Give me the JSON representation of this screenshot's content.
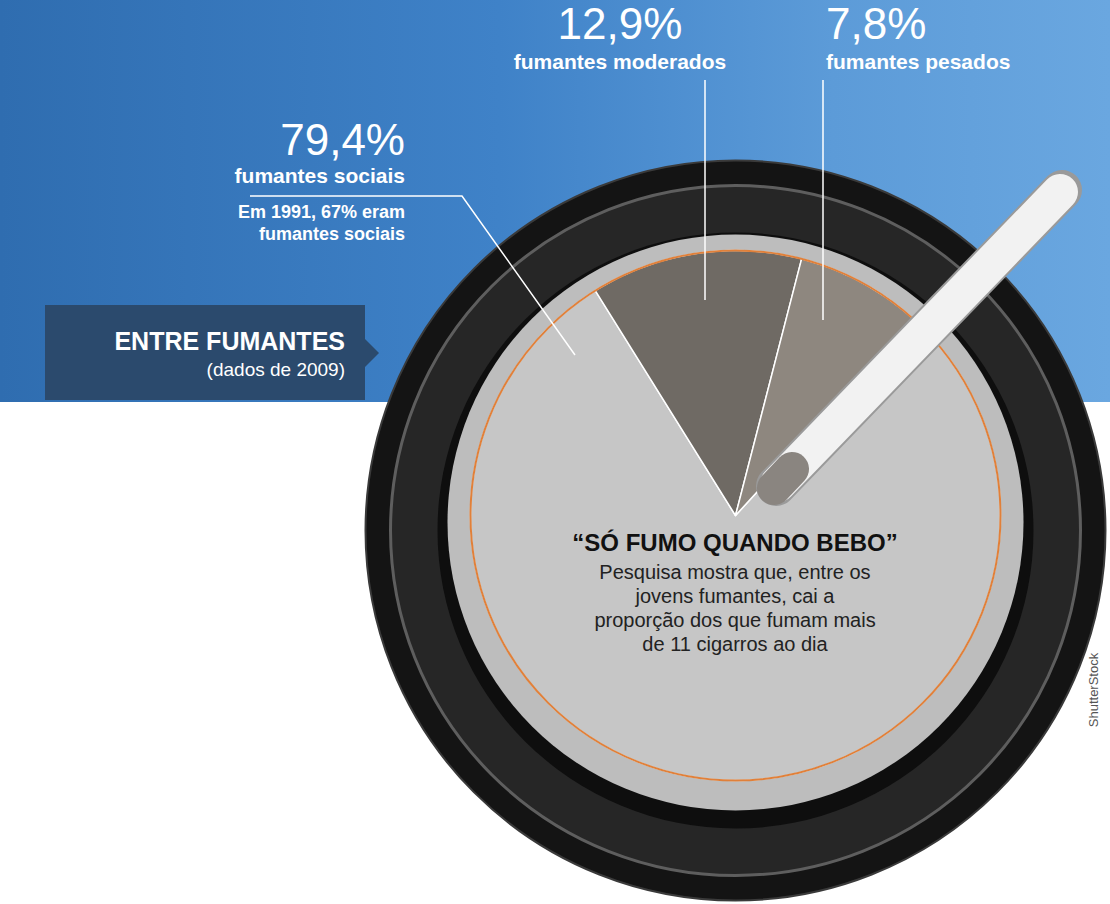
{
  "chart_data": {
    "type": "pie",
    "title": "ENTRE FUMANTES",
    "subtitle": "(dados de 2009)",
    "categories": [
      "fumantes sociais",
      "fumantes moderados",
      "fumantes pesados"
    ],
    "values": [
      79.4,
      12.9,
      7.8
    ],
    "value_labels": [
      "79,4%",
      "12,9%",
      "7,8%"
    ],
    "colors": [
      "#c6c6c6",
      "#6f6a64",
      "#8e877f"
    ],
    "data_labels": true,
    "annotations": [
      "Em 1991, 67% eram fumantes sociais",
      "“SÓ FUMO QUANDO BEBO”",
      "Pesquisa mostra que, entre os jovens fumantes, cai a proporção dos que fumam mais de 11 cigarros ao dia",
      "ShutterStock"
    ]
  }
}
